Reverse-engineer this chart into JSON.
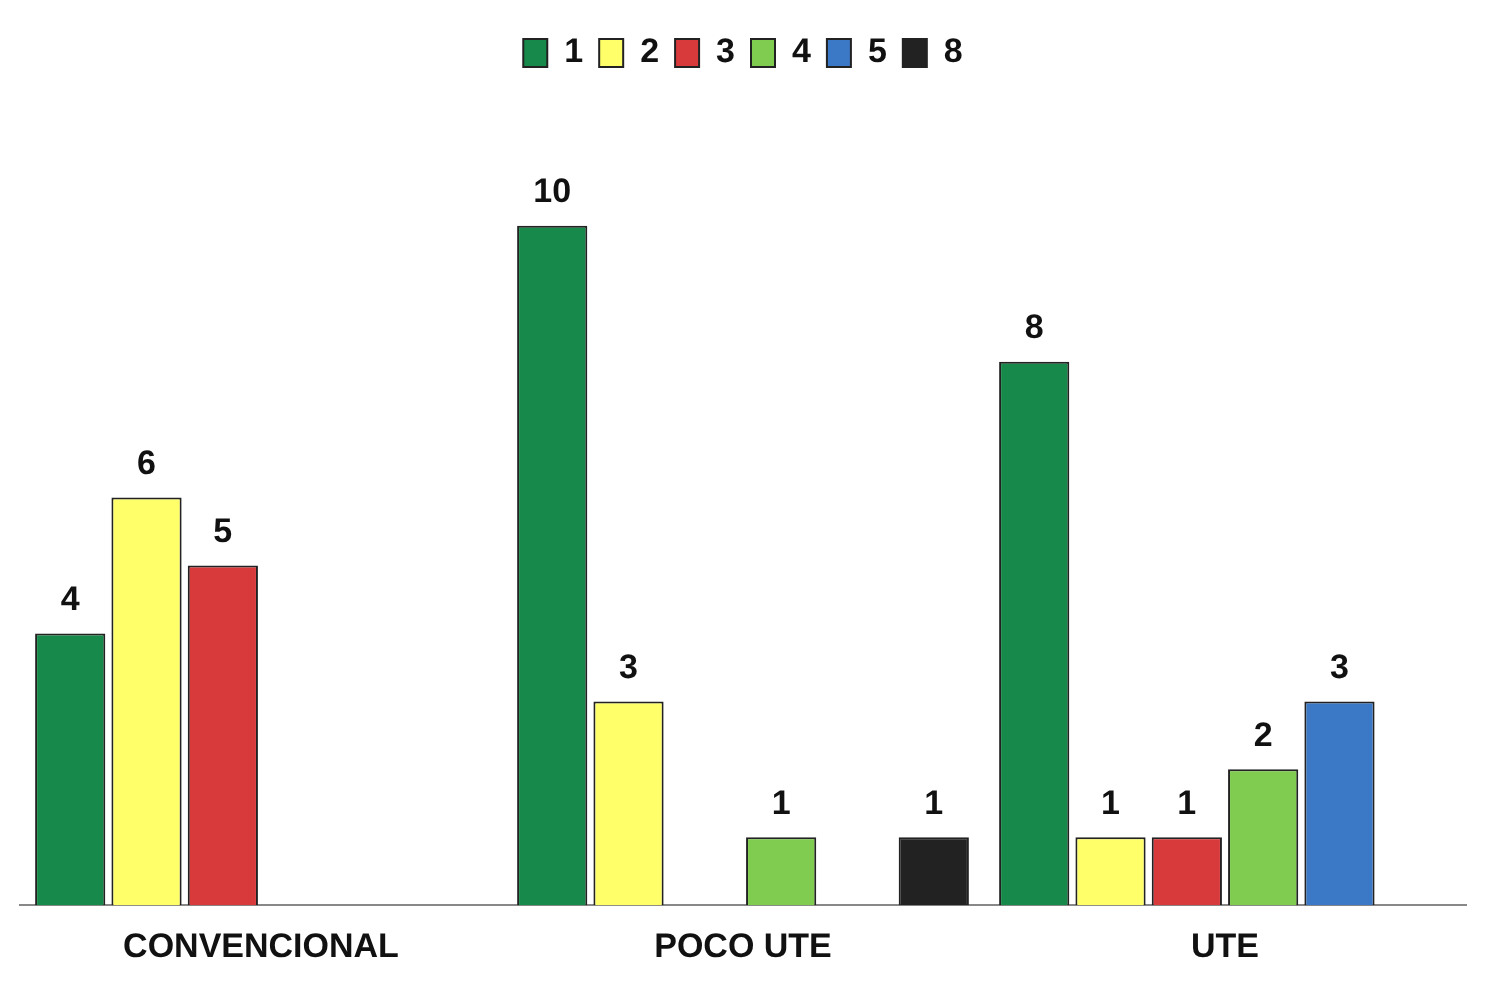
{
  "chart_data": {
    "type": "bar",
    "categories": [
      "CONVENCIONAL",
      "POCO UTE",
      "UTE"
    ],
    "series": [
      {
        "name": "1",
        "color": "#17894a",
        "values": [
          4,
          10,
          8
        ]
      },
      {
        "name": "2",
        "color": "#ffff6a",
        "values": [
          6,
          3,
          1
        ]
      },
      {
        "name": "3",
        "color": "#d83a3c",
        "values": [
          5,
          null,
          1
        ]
      },
      {
        "name": "4",
        "color": "#7fcc50",
        "values": [
          null,
          1,
          2
        ]
      },
      {
        "name": "5",
        "color": "#3b78c6",
        "values": [
          null,
          null,
          3
        ]
      },
      {
        "name": "8",
        "color": "#222222",
        "values": [
          null,
          1,
          null
        ]
      }
    ],
    "data_labels": true,
    "legend": "top",
    "grid": false
  }
}
